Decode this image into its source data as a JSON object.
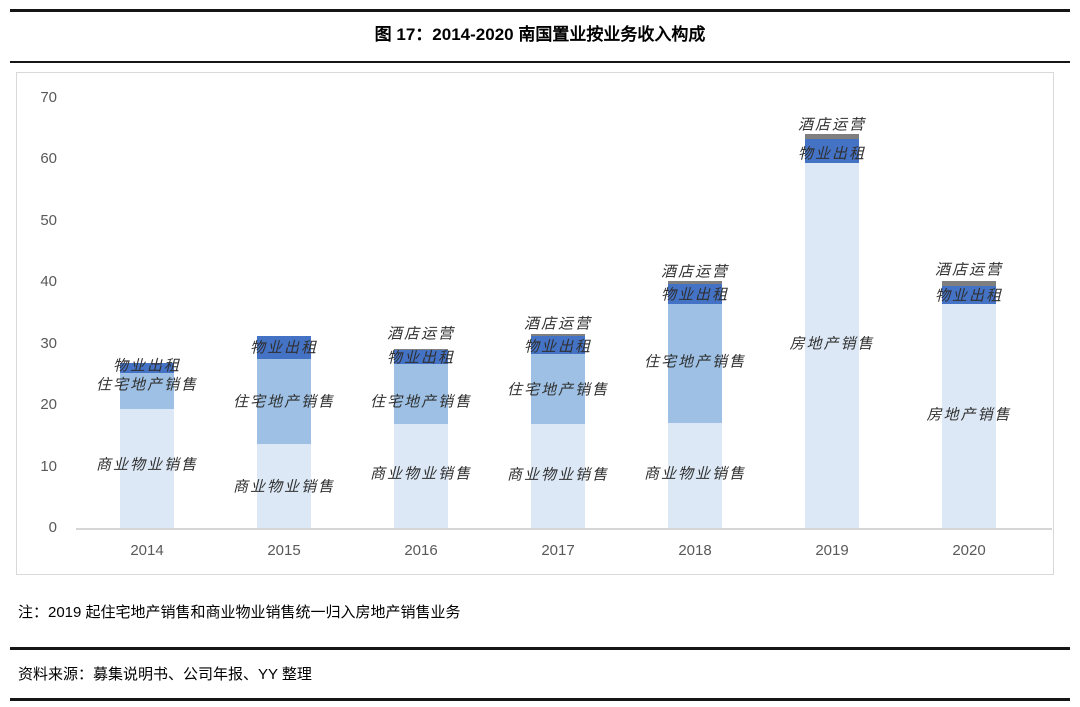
{
  "figure": {
    "title": "图 17：2014-2020 南国置业按业务收入构成",
    "note": "注：2019 起住宅地产销售和商业物业销售统一归入房地产销售业务",
    "source": "资料来源：募集说明书、公司年报、YY 整理"
  },
  "chart_data": {
    "type": "bar",
    "stacked": true,
    "title": "图 17：2014-2020 南国置业按业务收入构成",
    "categories": [
      "2014",
      "2015",
      "2016",
      "2017",
      "2018",
      "2019",
      "2020"
    ],
    "ylim": [
      0,
      70
    ],
    "yticks": [
      0,
      10,
      20,
      30,
      40,
      50,
      60,
      70
    ],
    "grid": false,
    "legend": false,
    "series": [
      {
        "name": "商业物业销售",
        "key": "commercial-property-sales",
        "color": "#dce8f5",
        "values": [
          19.4,
          13.7,
          16.9,
          16.9,
          17.1,
          0,
          0
        ]
      },
      {
        "name": "房地产销售",
        "key": "real-estate-sales",
        "color": "#dce8f5",
        "values": [
          0,
          0,
          0,
          0,
          0,
          59.4,
          36.5
        ]
      },
      {
        "name": "住宅地产销售",
        "key": "residential-property-sales",
        "color": "#9dc0e4",
        "values": [
          5.8,
          13.8,
          9.8,
          11.4,
          19.4,
          0,
          0
        ]
      },
      {
        "name": "物业出租",
        "key": "property-leasing",
        "color": "#4472c4",
        "values": [
          1.6,
          3.8,
          2.2,
          2.9,
          3.2,
          3.9,
          2.9
        ]
      },
      {
        "name": "酒店运营",
        "key": "hotel-operation",
        "color": "#7f7f7f",
        "values": [
          0,
          0,
          0.2,
          0.4,
          0.5,
          0.8,
          0.8
        ]
      }
    ],
    "annotations": [
      {
        "category": "2014",
        "labels": [
          {
            "text": "物业出租",
            "y": 26.5
          },
          {
            "text": "住宅地产销售",
            "y": 23.4
          },
          {
            "text": "商业物业销售",
            "y": 10.4
          }
        ]
      },
      {
        "category": "2015",
        "labels": [
          {
            "text": "物业出租",
            "y": 29.5
          },
          {
            "text": "住宅地产销售",
            "y": 20.7
          },
          {
            "text": "商业物业销售",
            "y": 6.8
          }
        ]
      },
      {
        "category": "2016",
        "labels": [
          {
            "text": "酒店运营",
            "y": 31.7
          },
          {
            "text": "物业出租",
            "y": 27.8
          },
          {
            "text": "住宅地产销售",
            "y": 20.7
          },
          {
            "text": "商业物业销售",
            "y": 9.0
          }
        ]
      },
      {
        "category": "2017",
        "labels": [
          {
            "text": "酒店运营",
            "y": 33.4
          },
          {
            "text": "物业出租",
            "y": 29.6
          },
          {
            "text": "住宅地产销售",
            "y": 22.6
          },
          {
            "text": "商业物业销售",
            "y": 8.8
          }
        ]
      },
      {
        "category": "2018",
        "labels": [
          {
            "text": "酒店运营",
            "y": 41.8
          },
          {
            "text": "物业出租",
            "y": 38.1
          },
          {
            "text": "住宅地产销售",
            "y": 27.2
          },
          {
            "text": "商业物业销售",
            "y": 9.0
          }
        ]
      },
      {
        "category": "2019",
        "labels": [
          {
            "text": "酒店运营",
            "y": 65.8
          },
          {
            "text": "物业出租",
            "y": 61.0
          },
          {
            "text": "房地产销售",
            "y": 30.1
          }
        ]
      },
      {
        "category": "2020",
        "labels": [
          {
            "text": "酒店运营",
            "y": 42.2
          },
          {
            "text": "物业出租",
            "y": 38.0
          },
          {
            "text": "房地产销售",
            "y": 18.5
          }
        ]
      }
    ]
  }
}
